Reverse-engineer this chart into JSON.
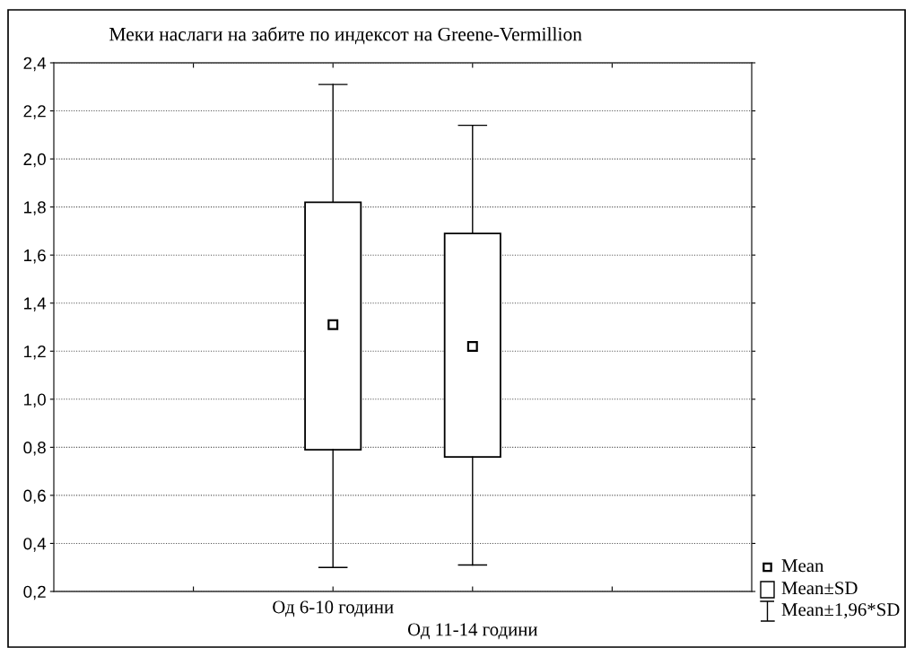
{
  "chart_data": {
    "type": "box",
    "title": "Меки наслаги на забите по индексот на Greene-Vermillion",
    "categories": [
      null,
      "Од 6-10 години",
      "Од 11-14 години",
      null
    ],
    "color": "#000000",
    "boxes": [
      null,
      {
        "low": 0.3,
        "q1": 0.79,
        "q3": 1.82,
        "high": 2.31,
        "mean": 1.31
      },
      {
        "low": 0.31,
        "q1": 0.76,
        "q3": 1.69,
        "high": 2.14,
        "mean": 1.22
      },
      null
    ],
    "ylim": [
      0.2,
      2.4
    ],
    "yticks": [
      {
        "value": 0.2,
        "label": "0,2"
      },
      {
        "value": 0.4,
        "label": "0,4"
      },
      {
        "value": 0.6,
        "label": "0,6"
      },
      {
        "value": 0.8,
        "label": "0,8"
      },
      {
        "value": 1.0,
        "label": "1,0"
      },
      {
        "value": 1.2,
        "label": "1,2"
      },
      {
        "value": 1.4,
        "label": "1,4"
      },
      {
        "value": 1.6,
        "label": "1,6"
      },
      {
        "value": 1.8,
        "label": "1,8"
      },
      {
        "value": 2.0,
        "label": "2,0"
      },
      {
        "value": 2.2,
        "label": "2,2"
      },
      {
        "value": 2.4,
        "label": "2,4"
      }
    ],
    "annotations": [
      "Mean",
      "Mean±SD",
      "Mean±1,96*SD"
    ],
    "grid": "y",
    "marker": "square"
  }
}
